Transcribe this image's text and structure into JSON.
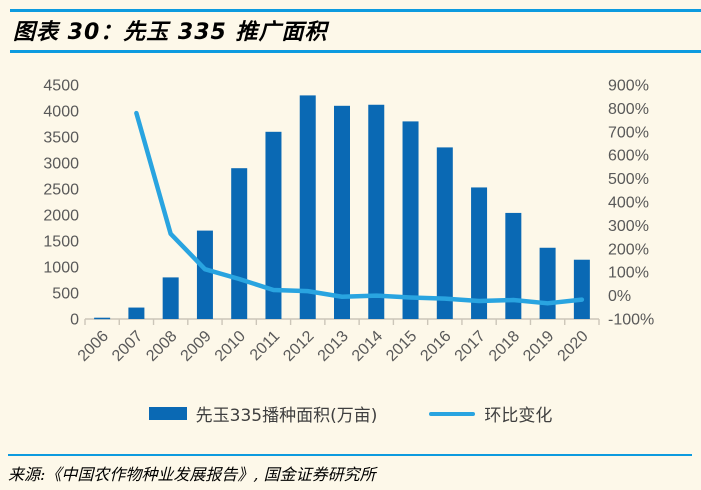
{
  "page": {
    "background": "#FDF8E9",
    "rule_color": "#0D9BDF"
  },
  "header": {
    "title": "图表 30：先玉 335 推广面积"
  },
  "legend": {
    "bar_label": "先玉335播种面积(万亩)",
    "line_label": "环比变化"
  },
  "footer": {
    "source": "来源:《中国农作物种业发展报告》, 国金证券研究所"
  },
  "chart_data": {
    "type": "bar",
    "subtype": "combo-bar-line",
    "title": "先玉335推广面积",
    "categories": [
      "2006",
      "2007",
      "2008",
      "2009",
      "2010",
      "2011",
      "2012",
      "2013",
      "2014",
      "2015",
      "2016",
      "2017",
      "2018",
      "2019",
      "2020"
    ],
    "series": [
      {
        "name": "先玉335播种面积(万亩)",
        "type": "bar",
        "axis": "left",
        "color": "#0A69B4",
        "values": [
          25,
          220,
          800,
          1700,
          2900,
          3600,
          4300,
          4100,
          4120,
          3800,
          3300,
          2530,
          2040,
          1370,
          1140
        ]
      },
      {
        "name": "环比变化",
        "type": "line",
        "axis": "right",
        "color": "#29A4E0",
        "values": [
          null,
          780,
          264,
          113,
          71,
          24,
          19,
          -5,
          0,
          -8,
          -13,
          -23,
          -19,
          -33,
          -17
        ]
      }
    ],
    "left_axis": {
      "min": 0,
      "max": 4500,
      "step": 500,
      "tick_labels": [
        "4500",
        "4000",
        "3500",
        "3000",
        "2500",
        "2000",
        "1500",
        "1000",
        "500",
        "0"
      ]
    },
    "right_axis": {
      "min": -100,
      "max": 900,
      "step": 100,
      "unit": "%",
      "tick_labels": [
        "900%",
        "800%",
        "700%",
        "600%",
        "500%",
        "400%",
        "300%",
        "200%",
        "100%",
        "0%",
        "-100%"
      ]
    },
    "grid": false,
    "legend_position": "bottom",
    "axis_text_color": "#595959",
    "axis_line_color": "#CCC6B9"
  }
}
